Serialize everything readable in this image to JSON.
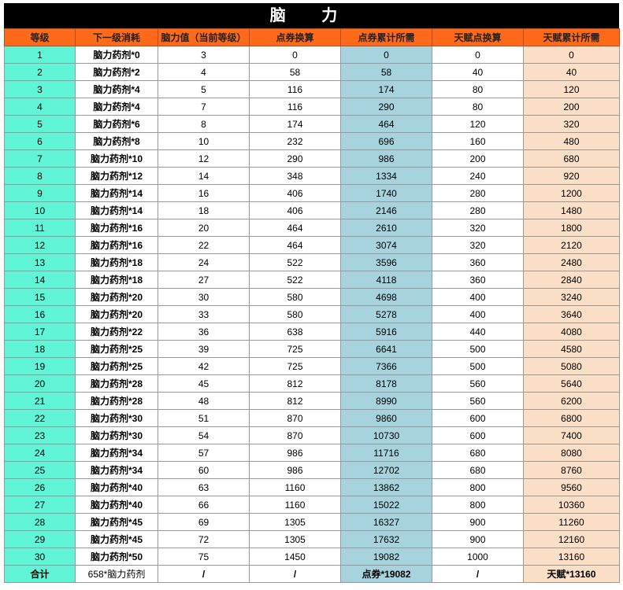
{
  "title": "脑 力",
  "headers": [
    "等级",
    "下一级消耗",
    "脑力值（当前等级）",
    "点券换算",
    "点券累计所需",
    "天赋点换算",
    "天赋累计所需"
  ],
  "rows": [
    [
      "1",
      "脑力药剂*0",
      "3",
      "0",
      "0",
      "0",
      "0"
    ],
    [
      "2",
      "脑力药剂*2",
      "4",
      "58",
      "58",
      "40",
      "40"
    ],
    [
      "3",
      "脑力药剂*4",
      "5",
      "116",
      "174",
      "80",
      "120"
    ],
    [
      "4",
      "脑力药剂*4",
      "7",
      "116",
      "290",
      "80",
      "200"
    ],
    [
      "5",
      "脑力药剂*6",
      "8",
      "174",
      "464",
      "120",
      "320"
    ],
    [
      "6",
      "脑力药剂*8",
      "10",
      "232",
      "696",
      "160",
      "480"
    ],
    [
      "7",
      "脑力药剂*10",
      "12",
      "290",
      "986",
      "200",
      "680"
    ],
    [
      "8",
      "脑力药剂*12",
      "14",
      "348",
      "1334",
      "240",
      "920"
    ],
    [
      "9",
      "脑力药剂*14",
      "16",
      "406",
      "1740",
      "280",
      "1200"
    ],
    [
      "10",
      "脑力药剂*14",
      "18",
      "406",
      "2146",
      "280",
      "1480"
    ],
    [
      "11",
      "脑力药剂*16",
      "20",
      "464",
      "2610",
      "320",
      "1800"
    ],
    [
      "12",
      "脑力药剂*16",
      "22",
      "464",
      "3074",
      "320",
      "2120"
    ],
    [
      "13",
      "脑力药剂*18",
      "24",
      "522",
      "3596",
      "360",
      "2480"
    ],
    [
      "14",
      "脑力药剂*18",
      "27",
      "522",
      "4118",
      "360",
      "2840"
    ],
    [
      "15",
      "脑力药剂*20",
      "30",
      "580",
      "4698",
      "400",
      "3240"
    ],
    [
      "16",
      "脑力药剂*20",
      "33",
      "580",
      "5278",
      "400",
      "3640"
    ],
    [
      "17",
      "脑力药剂*22",
      "36",
      "638",
      "5916",
      "440",
      "4080"
    ],
    [
      "18",
      "脑力药剂*25",
      "39",
      "725",
      "6641",
      "500",
      "4580"
    ],
    [
      "19",
      "脑力药剂*25",
      "42",
      "725",
      "7366",
      "500",
      "5080"
    ],
    [
      "20",
      "脑力药剂*28",
      "45",
      "812",
      "8178",
      "560",
      "5640"
    ],
    [
      "21",
      "脑力药剂*28",
      "48",
      "812",
      "8990",
      "560",
      "6200"
    ],
    [
      "22",
      "脑力药剂*30",
      "51",
      "870",
      "9860",
      "600",
      "6800"
    ],
    [
      "23",
      "脑力药剂*30",
      "54",
      "870",
      "10730",
      "600",
      "7400"
    ],
    [
      "24",
      "脑力药剂*34",
      "57",
      "986",
      "11716",
      "680",
      "8080"
    ],
    [
      "25",
      "脑力药剂*34",
      "60",
      "986",
      "12702",
      "680",
      "8760"
    ],
    [
      "26",
      "脑力药剂*40",
      "63",
      "1160",
      "13862",
      "800",
      "9560"
    ],
    [
      "27",
      "脑力药剂*40",
      "66",
      "1160",
      "15022",
      "800",
      "10360"
    ],
    [
      "28",
      "脑力药剂*45",
      "69",
      "1305",
      "16327",
      "900",
      "11260"
    ],
    [
      "29",
      "脑力药剂*45",
      "72",
      "1305",
      "17632",
      "900",
      "12160"
    ],
    [
      "30",
      "脑力药剂*50",
      "75",
      "1450",
      "19082",
      "1000",
      "13160"
    ]
  ],
  "total": [
    "合计",
    "658*脑力药剂",
    "/",
    "/",
    "点券*19082",
    "/",
    "天赋*13160"
  ],
  "colors": {
    "title_bg": "#000000",
    "header_bg": "#ff6a1a",
    "level_bg": "#5ff5d6",
    "coupon_total_bg": "#a6d3dd",
    "talent_total_bg": "#fbdfc6"
  }
}
